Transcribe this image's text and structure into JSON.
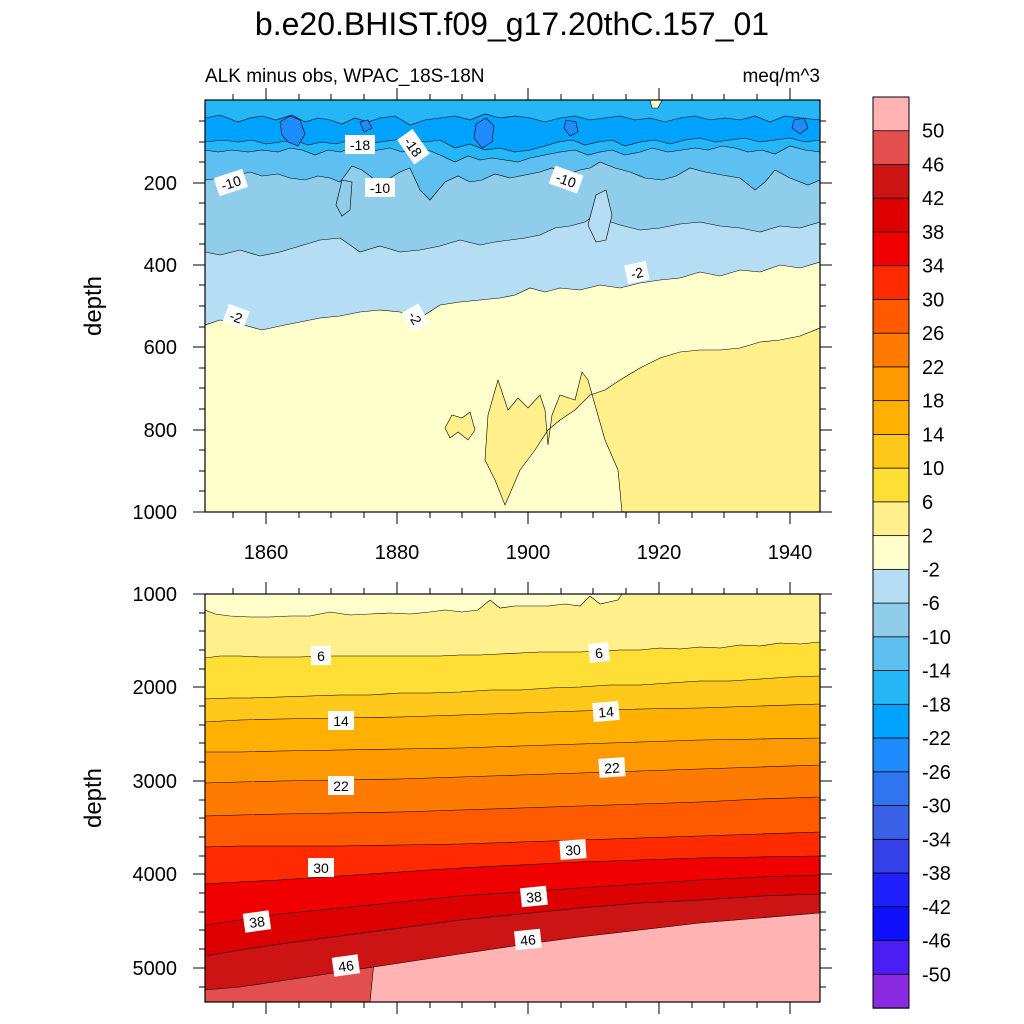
{
  "chart_data": {
    "type": "contour",
    "title": "b.e20.BHIST.f09_g17.20thC.157_01",
    "subtitle_left": "ALK minus obs, WPAC_18S-18N",
    "subtitle_right": "meq/m^3",
    "ylabel": "depth",
    "xlim": [
      1850,
      1946
    ],
    "xticks": [
      "1860",
      "1880",
      "1900",
      "1920",
      "1940"
    ],
    "colorbar": {
      "labels": [
        "50",
        "46",
        "42",
        "38",
        "34",
        "30",
        "26",
        "22",
        "18",
        "14",
        "10",
        "6",
        "2",
        "-2",
        "-6",
        "-10",
        "-14",
        "-18",
        "-22",
        "-26",
        "-30",
        "-34",
        "-38",
        "-42",
        "-46",
        "-50"
      ],
      "colors": [
        "#ffb3b3",
        "#e34f4f",
        "#cc1414",
        "#dd0000",
        "#f00000",
        "#ff2a00",
        "#ff5a00",
        "#ff7a00",
        "#ff9900",
        "#ffb000",
        "#ffc81a",
        "#ffdf35",
        "#fff08c",
        "#ffffcc",
        "#b5def5",
        "#8fcdeb",
        "#5dc0f0",
        "#24b6f7",
        "#00a2ff",
        "#1e8cff",
        "#2f75f0",
        "#3a60e8",
        "#3440e8",
        "#2020ff",
        "#1010ff",
        "#4a1ef5",
        "#8a2be2"
      ]
    },
    "panels": [
      {
        "name": "upper",
        "ylim": [
          0,
          1000
        ],
        "yticks": [
          "200",
          "400",
          "600",
          "800",
          "1000"
        ],
        "contour_labels": [
          "-18",
          "-18",
          "-10",
          "-10",
          "-10",
          "-2",
          "-2",
          "-2"
        ]
      },
      {
        "name": "lower",
        "ylim": [
          1000,
          5400
        ],
        "yticks": [
          "1000",
          "2000",
          "3000",
          "4000",
          "5000"
        ],
        "contour_labels": [
          "6",
          "6",
          "14",
          "14",
          "22",
          "22",
          "30",
          "30",
          "38",
          "38",
          "46",
          "46"
        ]
      }
    ]
  }
}
